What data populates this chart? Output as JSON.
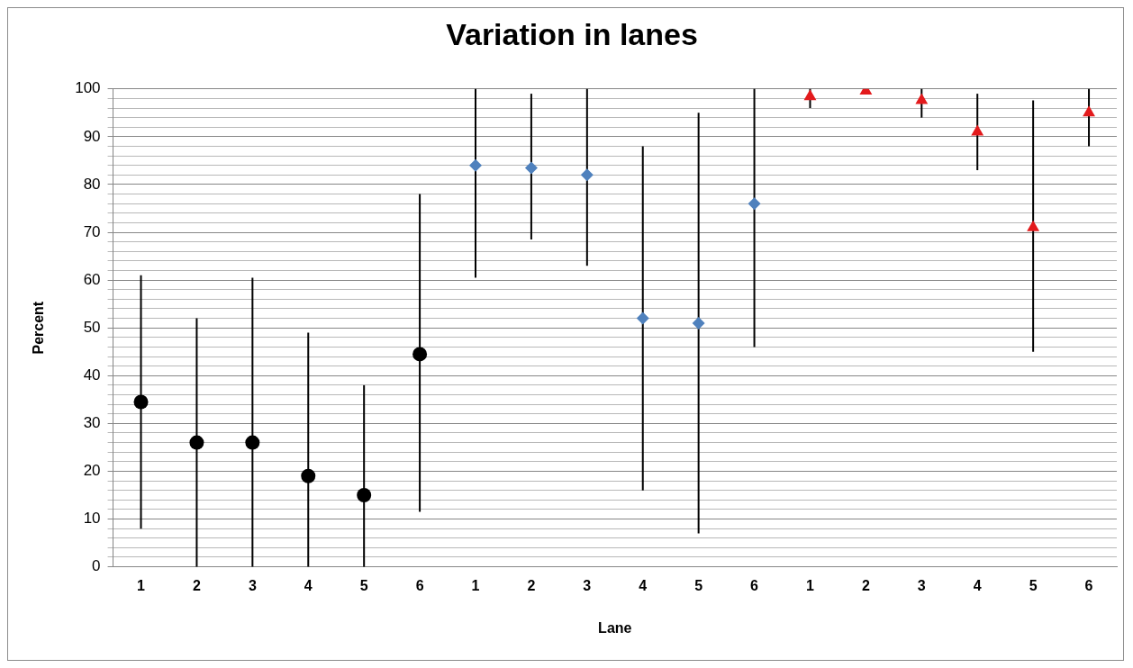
{
  "chart_data": {
    "type": "scatter",
    "title": "Variation in lanes",
    "xlabel": "Lane",
    "ylabel": "Percent",
    "categories": [
      "1",
      "2",
      "3",
      "4",
      "5",
      "6",
      "1",
      "2",
      "3",
      "4",
      "5",
      "6",
      "1",
      "2",
      "3",
      "4",
      "5",
      "6"
    ],
    "series": [
      {
        "color": "#000000",
        "marker": "circle",
        "values": [
          34.5,
          26,
          26,
          19,
          15,
          44.5,
          null,
          null,
          null,
          null,
          null,
          null,
          null,
          null,
          null,
          null,
          null,
          null
        ],
        "errors": [
          [
            8,
            61
          ],
          [
            0,
            52
          ],
          [
            0,
            60.5
          ],
          [
            0,
            49
          ],
          [
            0,
            38
          ],
          [
            11.5,
            78
          ],
          null,
          null,
          null,
          null,
          null,
          null,
          null,
          null,
          null,
          null,
          null,
          null
        ]
      },
      {
        "color": "#4f81bd",
        "marker": "diamond",
        "values": [
          null,
          null,
          null,
          null,
          null,
          null,
          84,
          83.5,
          82,
          52,
          51,
          76,
          null,
          null,
          null,
          null,
          null,
          null
        ],
        "errors": [
          null,
          null,
          null,
          null,
          null,
          null,
          [
            60.5,
            100
          ],
          [
            68.5,
            99
          ],
          [
            63,
            100
          ],
          [
            16,
            88
          ],
          [
            7,
            95
          ],
          [
            46,
            100
          ],
          null,
          null,
          null,
          null,
          null,
          null
        ]
      },
      {
        "color": "#e31a1c",
        "marker": "triangle",
        "values": [
          null,
          null,
          null,
          null,
          null,
          null,
          null,
          null,
          null,
          null,
          null,
          null,
          98.4,
          99.6,
          97.6,
          91,
          71,
          95
        ],
        "errors": [
          null,
          null,
          null,
          null,
          null,
          null,
          null,
          null,
          null,
          null,
          null,
          null,
          [
            96,
            100
          ],
          null,
          [
            94,
            100
          ],
          [
            83,
            99
          ],
          [
            45,
            97.6
          ],
          [
            88,
            100
          ]
        ]
      }
    ],
    "ylim": [
      0,
      100
    ],
    "yticks": [
      0,
      {
        "value": 2,
        "label": null
      },
      {
        "value": 4,
        "label": null
      },
      {
        "value": 6,
        "label": null
      },
      {
        "value": 8,
        "label": null
      },
      10,
      {
        "value": 12,
        "label": null
      },
      {
        "value": 14,
        "label": null
      },
      {
        "value": 16,
        "label": null
      },
      {
        "value": 18,
        "label": null
      },
      20,
      {
        "value": 22,
        "label": null
      },
      {
        "value": 24,
        "label": null
      },
      {
        "value": 26,
        "label": null
      },
      {
        "value": 28,
        "label": null
      },
      30,
      {
        "value": 32,
        "label": null
      },
      {
        "value": 34,
        "label": null
      },
      {
        "value": 36,
        "label": null
      },
      {
        "value": 38,
        "label": null
      },
      40,
      {
        "value": 42,
        "label": null
      },
      {
        "value": 44,
        "label": null
      },
      {
        "value": 46,
        "label": null
      },
      {
        "value": 48,
        "label": null
      },
      50,
      {
        "value": 52,
        "label": null
      },
      {
        "value": 54,
        "label": null
      },
      {
        "value": 56,
        "label": null
      },
      {
        "value": 58,
        "label": null
      },
      60,
      {
        "value": 62,
        "label": null
      },
      {
        "value": 64,
        "label": null
      },
      {
        "value": 66,
        "label": null
      },
      {
        "value": 68,
        "label": null
      },
      70,
      {
        "value": 72,
        "label": null
      },
      {
        "value": 74,
        "label": null
      },
      {
        "value": 76,
        "label": null
      },
      {
        "value": 78,
        "label": null
      },
      80,
      {
        "value": 82,
        "label": null
      },
      {
        "value": 84,
        "label": null
      },
      {
        "value": 86,
        "label": null
      },
      {
        "value": 88,
        "label": null
      },
      90,
      {
        "value": 92,
        "label": null
      },
      {
        "value": 94,
        "label": null
      },
      {
        "value": 96,
        "label": null
      },
      {
        "value": 98,
        "label": null
      },
      100
    ],
    "grid": "y",
    "legend": false
  }
}
